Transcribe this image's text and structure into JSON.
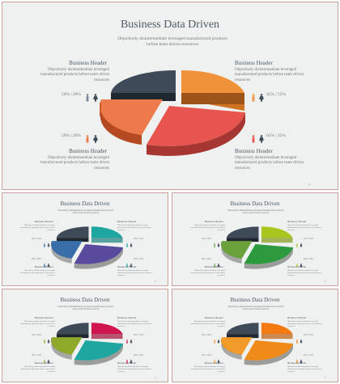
{
  "main_slide": {
    "title": "Business Data Driven",
    "subtitle": "Objectively disintermediate leveraged manufactured products before team driven resources",
    "blocks": [
      {
        "header": "Business Header",
        "body": "Objectively disintermediate leveraged manufactured products before team driven resources",
        "stat": "50% | 20%"
      },
      {
        "header": "Business Header",
        "body": "Objectively disintermediate leveraged manufactured products before team driven resources",
        "stat": "45% | 55%"
      },
      {
        "header": "Business Header",
        "body": "Objectively disintermediate leveraged manufactured products before team driven resources",
        "stat": "50% | 20%"
      },
      {
        "header": "Business Header",
        "body": "Objectively disintermediate leveraged manufactured products before team driven resources",
        "stat": "65% | 35%"
      }
    ],
    "page_number": "1",
    "colors": {
      "dark": "#3f4a59",
      "orange": "#f0923a",
      "red": "#e8544e",
      "coral": "#ec7a4a"
    }
  },
  "thumbnails": [
    {
      "title": "Business Data Driven",
      "subtitle": "Objectively disintermediate leveraged manufactured products before team driven resources",
      "header": "Business Header",
      "body": "Objectively disintermediate leveraged manufactured products before team driven resources",
      "stats": [
        "50% | 20%",
        "45% | 55%",
        "50% | 20%",
        "65% | 35%"
      ],
      "page_number": "2",
      "colors": {
        "dark": "#3f4a59",
        "a": "#1ea6a0",
        "b": "#5a4a9e",
        "c": "#3a6ea8",
        "icon_left": "#3a6ea8",
        "icon_right": "#1ea6a0"
      }
    },
    {
      "title": "Business Data Driven",
      "subtitle": "Objectively disintermediate leveraged manufactured products before team driven resources",
      "header": "Business Header",
      "body": "Objectively disintermediate leveraged manufactured products before team driven resources",
      "stats": [
        "50% | 20%",
        "45% | 55%",
        "50% | 20%",
        "65% | 35%"
      ],
      "page_number": "3",
      "colors": {
        "dark": "#3f4a59",
        "a": "#a8c61e",
        "b": "#2e9a3e",
        "c": "#6aa13a",
        "icon_left": "#6aa13a",
        "icon_right": "#a8c61e"
      }
    },
    {
      "title": "Business Data Driven",
      "subtitle": "Objectively disintermediate leveraged manufactured products before team driven resources",
      "header": "Business Header",
      "body": "Objectively disintermediate leveraged manufactured products before team driven resources",
      "stats": [
        "50% | 20%",
        "45% | 55%",
        "50% | 20%",
        "65% | 35%"
      ],
      "page_number": "4",
      "colors": {
        "dark": "#3f4a59",
        "a": "#d0144e",
        "b": "#1ea6a0",
        "c": "#8faa2a",
        "icon_left": "#8faa2a",
        "icon_right": "#d0144e"
      }
    },
    {
      "title": "Business Data Driven",
      "subtitle": "Objectively disintermediate leveraged manufactured products before team driven resources",
      "header": "Business Header",
      "body": "Objectively disintermediate leveraged manufactured products before team driven resources",
      "stats": [
        "50% | 20%",
        "45% | 55%",
        "50% | 20%",
        "65% | 35%"
      ],
      "page_number": "5",
      "colors": {
        "dark": "#3f4a59",
        "a": "#f47a12",
        "b": "#f08a18",
        "c": "#f29a2a",
        "icon_left": "#f29a2a",
        "icon_right": "#f47a12"
      }
    }
  ]
}
